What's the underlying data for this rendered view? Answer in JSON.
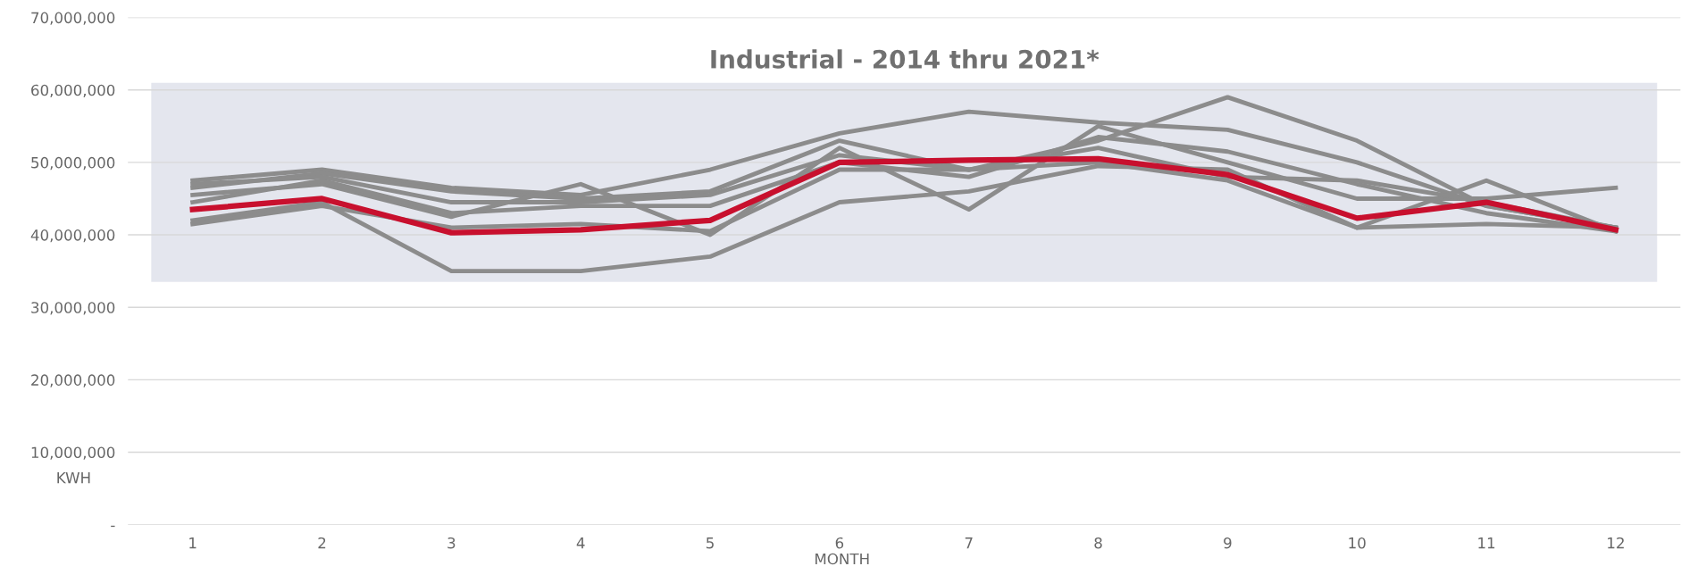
{
  "chart_data": {
    "type": "line",
    "title": "Industrial - 2014 thru 2021*",
    "xlabel": "MONTH",
    "ylabel": "KWH",
    "categories": [
      "1",
      "2",
      "3",
      "4",
      "5",
      "6",
      "7",
      "8",
      "9",
      "10",
      "11",
      "12"
    ],
    "series": [
      {
        "color": "#8c8c8c",
        "values": [
          47500000,
          49000000,
          46500000,
          45500000,
          49000000,
          54000000,
          57000000,
          55500000,
          54500000,
          50000000,
          44000000,
          41000000
        ]
      },
      {
        "color": "#8c8c8c",
        "values": [
          46500000,
          48500000,
          46000000,
          45000000,
          46000000,
          53000000,
          49000000,
          53000000,
          59000000,
          53000000,
          44000000,
          41000000
        ]
      },
      {
        "color": "#8c8c8c",
        "values": [
          42000000,
          44500000,
          35000000,
          35000000,
          37000000,
          44500000,
          46000000,
          49500000,
          49000000,
          41000000,
          41500000,
          41000000
        ]
      },
      {
        "color": "#8c8c8c",
        "values": [
          45500000,
          47000000,
          42500000,
          47000000,
          40000000,
          52000000,
          43500000,
          55000000,
          50000000,
          45000000,
          45000000,
          46500000
        ]
      },
      {
        "color": "#8c8c8c",
        "values": [
          44500000,
          47500000,
          43000000,
          44000000,
          44000000,
          50000000,
          48000000,
          53500000,
          51500000,
          47000000,
          43000000,
          40500000
        ]
      },
      {
        "color": "#8c8c8c",
        "values": [
          41500000,
          44000000,
          41000000,
          41500000,
          40500000,
          49000000,
          49000000,
          50000000,
          47500000,
          41000000,
          47500000,
          40500000
        ]
      },
      {
        "color": "#8c8c8c",
        "values": [
          47000000,
          48000000,
          44500000,
          44500000,
          45500000,
          51000000,
          49000000,
          52000000,
          48000000,
          47500000,
          44500000,
          41000000
        ]
      },
      {
        "color": "#c8102e",
        "values": [
          43500000,
          45000000,
          40300000,
          40700000,
          42000000,
          50000000,
          50300000,
          50500000,
          48300000,
          42300000,
          44500000,
          40700000
        ]
      }
    ],
    "ylim": [
      0,
      70000000
    ],
    "yticks": [
      {
        "value": 0,
        "label": "-"
      },
      {
        "value": 10000000,
        "label": "10,000,000"
      },
      {
        "value": 20000000,
        "label": "20,000,000"
      },
      {
        "value": 30000000,
        "label": "30,000,000"
      },
      {
        "value": 40000000,
        "label": "40,000,000"
      },
      {
        "value": 50000000,
        "label": "50,000,000"
      },
      {
        "value": 60000000,
        "label": "60,000,000"
      },
      {
        "value": 70000000,
        "label": "70,000,000"
      }
    ],
    "bands": [
      {
        "axis": "y",
        "from": 33500000,
        "to": 61000000,
        "color": "#e4e6ee"
      }
    ],
    "grid": "y",
    "marker": "none",
    "line_style": "solid"
  }
}
